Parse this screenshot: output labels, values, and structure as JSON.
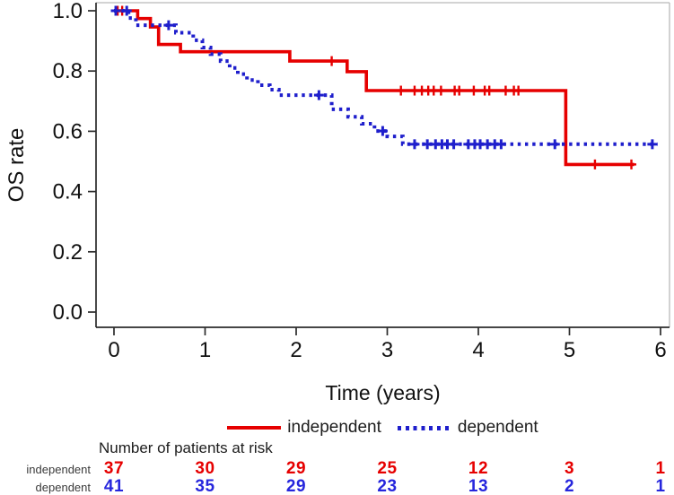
{
  "chart_data": {
    "type": "line",
    "subtype": "kaplan-meier-step",
    "title": "",
    "xlabel": "Time (years)",
    "ylabel": "OS rate",
    "xlim": [
      0,
      6
    ],
    "ylim": [
      0.0,
      1.0
    ],
    "xticks": [
      0,
      1,
      2,
      3,
      4,
      5,
      6
    ],
    "yticks": [
      0.0,
      0.2,
      0.4,
      0.6,
      0.8,
      1.0
    ],
    "ytick_labels": [
      "0.0",
      "0.2",
      "0.4",
      "0.6",
      "0.8",
      "1.0"
    ],
    "grid": false,
    "legend_position": "below-plot",
    "series": [
      {
        "name": "independent",
        "color": "#e60000",
        "style": "solid",
        "times": [
          0,
          0.26,
          0.4,
          0.49,
          0.73,
          1.93,
          2.56,
          2.77,
          4.96
        ],
        "values": [
          1.0,
          0.974,
          0.946,
          0.888,
          0.864,
          0.833,
          0.798,
          0.735,
          0.49
        ],
        "end_time": 5.71,
        "censor_times": [
          0.04,
          0.09,
          2.39,
          3.15,
          3.3,
          3.38,
          3.45,
          3.51,
          3.59,
          3.74,
          3.79,
          3.95,
          4.07,
          4.12,
          4.3,
          4.39,
          4.44,
          5.28,
          5.68
        ],
        "censor_values": [
          1.0,
          1.0,
          0.833,
          0.735,
          0.735,
          0.735,
          0.735,
          0.735,
          0.735,
          0.735,
          0.735,
          0.735,
          0.735,
          0.735,
          0.735,
          0.735,
          0.735,
          0.49,
          0.49
        ]
      },
      {
        "name": "dependent",
        "color": "#1f1fcc",
        "style": "dotted",
        "times": [
          0,
          0.16,
          0.24,
          0.68,
          0.87,
          0.97,
          1.06,
          1.17,
          1.27,
          1.36,
          1.46,
          1.58,
          1.71,
          1.81,
          2.39,
          2.57,
          2.72,
          2.86,
          3.0,
          3.17
        ],
        "values": [
          1.0,
          0.976,
          0.952,
          0.927,
          0.902,
          0.878,
          0.856,
          0.833,
          0.81,
          0.79,
          0.77,
          0.753,
          0.738,
          0.72,
          0.673,
          0.648,
          0.625,
          0.601,
          0.583,
          0.557
        ],
        "end_time": 5.97,
        "censor_times": [
          0.02,
          0.14,
          0.6,
          2.25,
          2.95,
          3.3,
          3.44,
          3.53,
          3.6,
          3.66,
          3.73,
          3.89,
          3.96,
          4.02,
          4.1,
          4.18,
          4.25,
          4.84,
          5.91
        ],
        "censor_values": [
          1.0,
          1.0,
          0.952,
          0.72,
          0.601,
          0.557,
          0.557,
          0.557,
          0.557,
          0.557,
          0.557,
          0.557,
          0.557,
          0.557,
          0.557,
          0.557,
          0.557,
          0.557,
          0.557
        ]
      }
    ]
  },
  "legend": {
    "items": [
      {
        "label": "independent",
        "color": "#e60000",
        "style": "solid"
      },
      {
        "label": "dependent",
        "color": "#1f1fcc",
        "style": "dotted"
      }
    ]
  },
  "risk_table": {
    "title": "Number of patients at risk",
    "time_points": [
      0,
      1,
      2,
      3,
      4,
      5,
      6
    ],
    "rows": [
      {
        "label": "independent",
        "color": "#e60000",
        "counts": [
          37,
          30,
          29,
          25,
          12,
          3,
          1
        ]
      },
      {
        "label": "dependent",
        "color": "#2626dd",
        "counts": [
          41,
          35,
          29,
          23,
          13,
          2,
          1
        ]
      }
    ]
  },
  "colors": {
    "axis": "#2b2b2b",
    "frame": "#b9b9b9",
    "text": "#111111",
    "background": "#ffffff"
  }
}
